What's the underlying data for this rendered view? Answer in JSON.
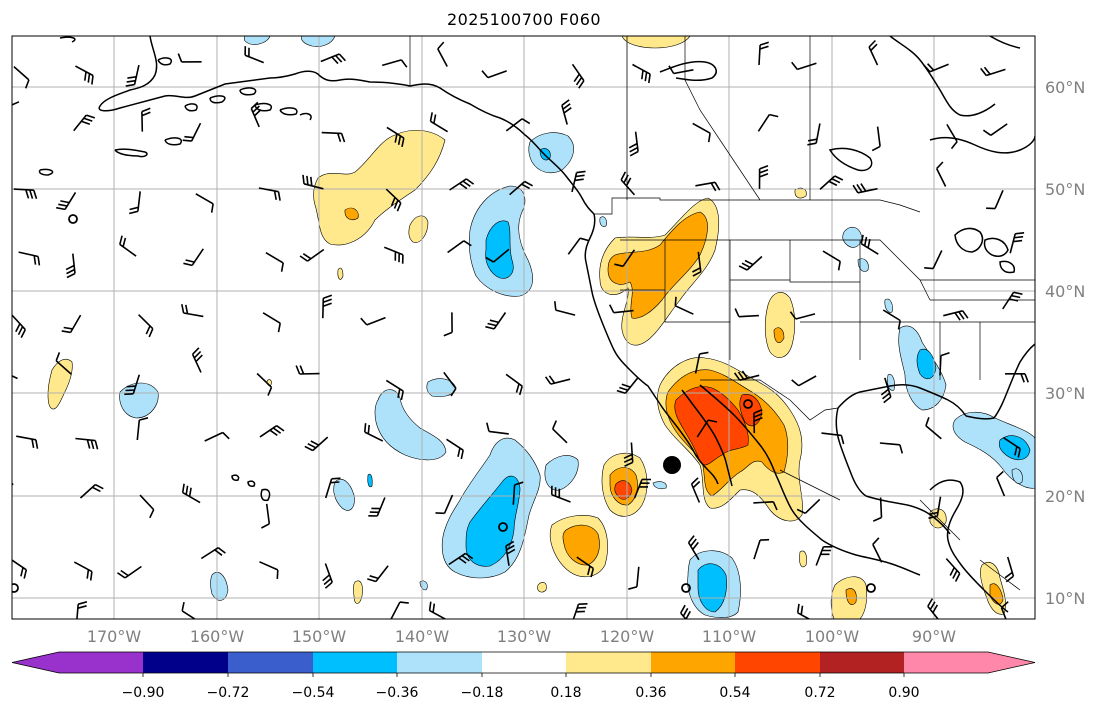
{
  "title": "2025100700 F060",
  "lon_labels": [
    "170°W",
    "160°W",
    "150°W",
    "140°W",
    "130°W",
    "120°W",
    "110°W",
    "100°W",
    "90°W"
  ],
  "lat_labels": [
    "60°N",
    "50°N",
    "40°N",
    "30°N",
    "20°N",
    "10°N"
  ],
  "colorbar": {
    "ticks": [
      "−0.90",
      "−0.72",
      "−0.54",
      "−0.36",
      "−0.18",
      "0.18",
      "0.36",
      "0.54",
      "0.72",
      "0.90"
    ],
    "colors": [
      "#9932cc",
      "#00008b",
      "#3a5fcd",
      "#00bfff",
      "#aee2fa",
      "#ffffff",
      "#ffe98c",
      "#ffa500",
      "#ff4500",
      "#b22222",
      "#ff88aa"
    ]
  },
  "colors": {
    "gridline": "#b0b0b0",
    "coast": "#000000",
    "label": "#808080"
  }
}
